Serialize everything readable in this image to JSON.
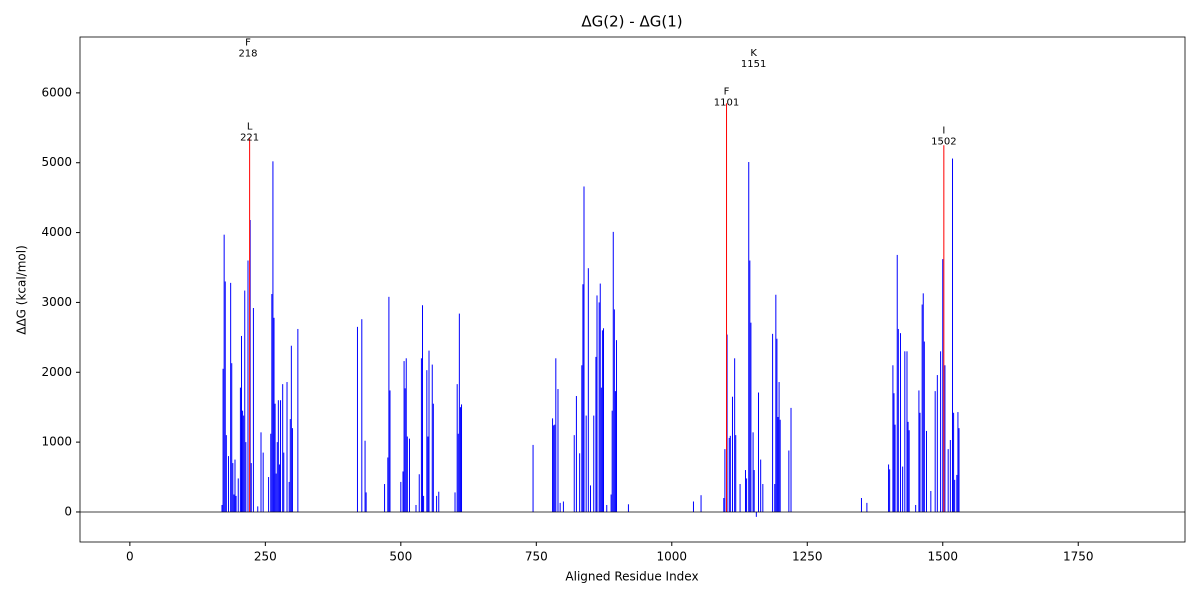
{
  "chart_data": {
    "type": "bar",
    "title": "ΔG(2) - ΔG(1)",
    "x_label": "Aligned Residue Index",
    "y_label": "ΔΔG (kcal/mol)",
    "xlim": [
      -92,
      1947
    ],
    "ylim": [
      -430,
      6800
    ],
    "xticks": [
      0,
      250,
      500,
      750,
      1000,
      1250,
      1500,
      1750
    ],
    "yticks": [
      0,
      1000,
      2000,
      3000,
      4000,
      5000,
      6000
    ],
    "series": [
      {
        "color": "#0000ff",
        "x": [
          170,
          172,
          174,
          176,
          178,
          182,
          186,
          188,
          190,
          192,
          194,
          196,
          200,
          204,
          206,
          208,
          210,
          212,
          214,
          218,
          222,
          224,
          228,
          236,
          242,
          246,
          256,
          260,
          262,
          264,
          266,
          268,
          270,
          272,
          274,
          276,
          278,
          282,
          284,
          290,
          294,
          296,
          298,
          300,
          310,
          420,
          428,
          434,
          436,
          470,
          476,
          478,
          480,
          500,
          504,
          506,
          508,
          510,
          512,
          516,
          528,
          534,
          538,
          540,
          542,
          548,
          550,
          552,
          558,
          560,
          566,
          570,
          600,
          604,
          606,
          608,
          610,
          612,
          744,
          780,
          782,
          784,
          786,
          790,
          794,
          800,
          820,
          824,
          830,
          834,
          836,
          838,
          842,
          846,
          850,
          856,
          860,
          862,
          866,
          868,
          870,
          872,
          874,
          880,
          888,
          890,
          892,
          894,
          896,
          898,
          920,
          1040,
          1054,
          1096,
          1098,
          1102,
          1106,
          1108,
          1112,
          1116,
          1118,
          1126,
          1136,
          1138,
          1142,
          1144,
          1146,
          1150,
          1152,
          1156,
          1160,
          1164,
          1168,
          1186,
          1190,
          1192,
          1194,
          1196,
          1198,
          1200,
          1216,
          1220,
          1350,
          1360,
          1400,
          1402,
          1408,
          1410,
          1412,
          1416,
          1418,
          1422,
          1426,
          1430,
          1434,
          1436,
          1438,
          1450,
          1456,
          1458,
          1462,
          1464,
          1466,
          1470,
          1478,
          1486,
          1490,
          1496,
          1500,
          1504,
          1510,
          1514,
          1518,
          1520,
          1522,
          1526,
          1528,
          1530
        ],
        "values": [
          100,
          2050,
          3970,
          3300,
          1100,
          800,
          3280,
          2130,
          700,
          250,
          750,
          230,
          480,
          1780,
          2520,
          1450,
          1380,
          3170,
          1000,
          3600,
          4180,
          700,
          2920,
          80,
          1140,
          850,
          500,
          1120,
          3120,
          5020,
          2780,
          1550,
          550,
          1000,
          1600,
          680,
          1600,
          1830,
          850,
          1860,
          430,
          1330,
          2380,
          1200,
          2620,
          2650,
          2760,
          1020,
          280,
          400,
          780,
          3080,
          1740,
          430,
          580,
          2160,
          1770,
          2200,
          1080,
          1050,
          100,
          540,
          2200,
          2960,
          230,
          2030,
          1080,
          2310,
          2110,
          1550,
          230,
          290,
          280,
          1830,
          1120,
          2840,
          1500,
          1540,
          960,
          1340,
          1240,
          1250,
          2200,
          1760,
          130,
          150,
          1100,
          1660,
          840,
          2100,
          3260,
          4660,
          1380,
          3490,
          380,
          1380,
          2220,
          3100,
          3000,
          3270,
          1780,
          2600,
          2630,
          100,
          250,
          1450,
          4010,
          2900,
          1730,
          2460,
          110,
          150,
          240,
          200,
          900,
          2540,
          1060,
          1090,
          1650,
          2200,
          1100,
          400,
          600,
          480,
          5010,
          3600,
          2710,
          1140,
          600,
          -70,
          1710,
          750,
          400,
          2550,
          400,
          3110,
          2480,
          1360,
          1860,
          1320,
          880,
          1490,
          200,
          130,
          680,
          610,
          2100,
          1700,
          1250,
          3680,
          2620,
          2560,
          650,
          2300,
          2300,
          1290,
          1170,
          100,
          1740,
          1420,
          2970,
          3130,
          2440,
          1160,
          300,
          1730,
          1960,
          2300,
          3620,
          2100,
          900,
          1030,
          5060,
          1420,
          460,
          530,
          1430,
          1200
        ]
      },
      {
        "color": "#ff0000",
        "x": [
          221,
          1101,
          1502
        ],
        "values": [
          5350,
          5850,
          5250
        ]
      }
    ],
    "annotations": [
      {
        "residue": "F",
        "x": 218,
        "y": 6550
      },
      {
        "residue": "L",
        "x": 221,
        "y": 5350
      },
      {
        "residue": "F",
        "x": 1101,
        "y": 5850
      },
      {
        "residue": "K",
        "x": 1151,
        "y": 6400
      },
      {
        "residue": "I",
        "x": 1502,
        "y": 5290
      }
    ]
  }
}
